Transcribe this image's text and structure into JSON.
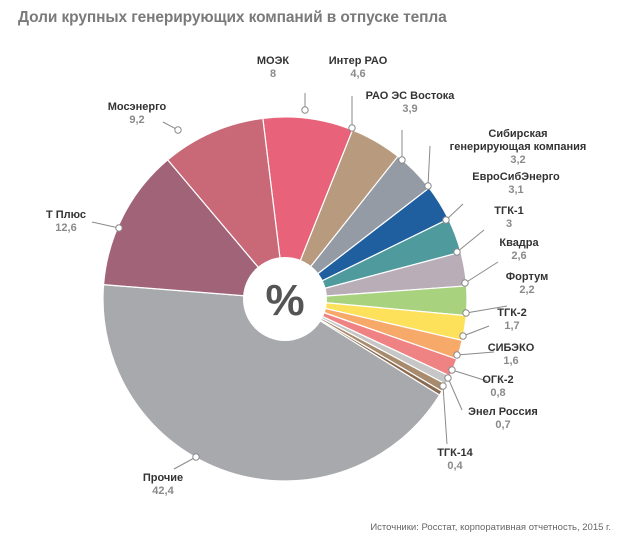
{
  "chart_data": {
    "type": "pie",
    "title": "Доли крупных генерирующих компаний в отпуске тепла",
    "center_label": "%",
    "source": "Источники: Росстат, корпоративная отчетность, 2015 г.",
    "slices": [
      {
        "name": "МОЭК",
        "value": 8,
        "label_value": "8",
        "color": "#e8637a"
      },
      {
        "name": "Интер РАО",
        "value": 4.6,
        "label_value": "4,6",
        "color": "#b89a7e"
      },
      {
        "name": "РАО ЭС Востока",
        "value": 3.9,
        "label_value": "3,9",
        "color": "#959ba4"
      },
      {
        "name": "Сибирская\nгенерирующая компания",
        "value": 3.2,
        "label_value": "3,2",
        "color": "#1f5fa0"
      },
      {
        "name": "ЕвроСибЭнерго",
        "value": 3.1,
        "label_value": "3,1",
        "color": "#4e9a9c"
      },
      {
        "name": "ТГК-1",
        "value": 3,
        "label_value": "3",
        "color": "#b9adb8"
      },
      {
        "name": "Квадра",
        "value": 2.6,
        "label_value": "2,6",
        "color": "#a9d27e"
      },
      {
        "name": "Фортум",
        "value": 2.2,
        "label_value": "2,2",
        "color": "#fde15a"
      },
      {
        "name": "ТГК-2",
        "value": 1.7,
        "label_value": "1,7",
        "color": "#f7a96a"
      },
      {
        "name": "СИБЭКО",
        "value": 1.6,
        "label_value": "1,6",
        "color": "#ef8384"
      },
      {
        "name": "ОГК-2",
        "value": 0.8,
        "label_value": "0,8",
        "color": "#c6c6c6"
      },
      {
        "name": "Энел Россия",
        "value": 0.7,
        "label_value": "0,7",
        "color": "#a88a6c"
      },
      {
        "name": "ТГК-14",
        "value": 0.4,
        "label_value": "0,4",
        "color": "#8a6a50"
      },
      {
        "name": "Прочие",
        "value": 42.4,
        "label_value": "42,4",
        "color": "#a8a9ac"
      },
      {
        "name": "Т Плюс",
        "value": 12.6,
        "label_value": "12,6",
        "color": "#a06377"
      },
      {
        "name": "Мосэнерго",
        "value": 9.2,
        "label_value": "9,2",
        "color": "#c96978"
      }
    ]
  }
}
